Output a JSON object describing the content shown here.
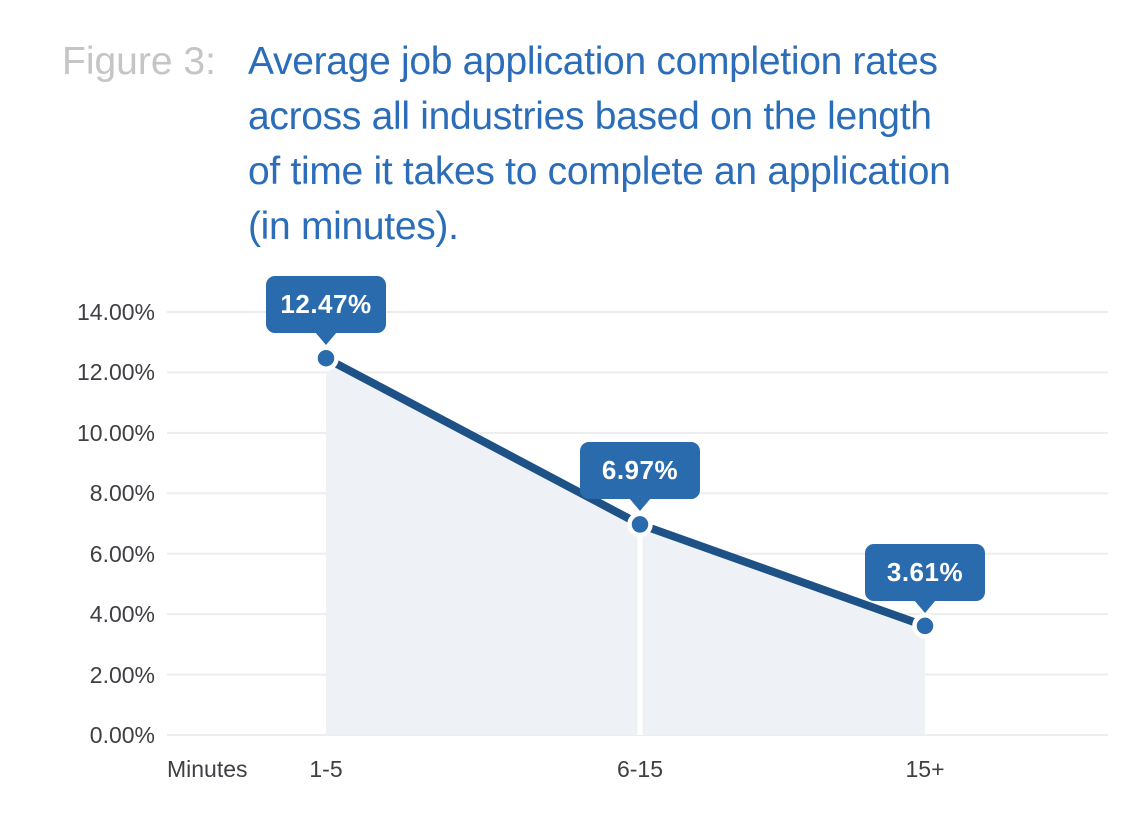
{
  "figure": {
    "label": "Figure 3:",
    "title_lines": [
      "Average job application completion rates",
      "across all industries based on the length",
      "of time it takes to complete an application",
      "(in minutes)."
    ]
  },
  "chart_data": {
    "type": "line",
    "variant": "line-with-area-fill-and-callouts",
    "title": "Average job application completion rates across all industries based on the length of time it takes to complete an application (in minutes).",
    "x_axis_title": "Minutes",
    "categories": [
      "1-5",
      "6-15",
      "15+"
    ],
    "values": [
      12.47,
      6.97,
      3.61
    ],
    "data_labels": [
      "12.47%",
      "6.97%",
      "3.61%"
    ],
    "y_ticks": [
      14,
      12,
      10,
      8,
      6,
      4,
      2,
      0
    ],
    "y_tick_labels": [
      "14.00%",
      "12.00%",
      "10.00%",
      "8.00%",
      "6.00%",
      "4.00%",
      "2.00%",
      "0.00%"
    ],
    "ylim": [
      0,
      14
    ],
    "grid": true,
    "legend": false,
    "colors": {
      "title_text": "#2b6db8",
      "figure_label": "#c5c5c5",
      "line": "#1e5287",
      "marker": "#2a6bad",
      "marker_ring": "#ffffff",
      "callout_bg": "#2a6bad",
      "callout_text": "#ffffff",
      "area_fill": "#edf1f7",
      "gridline": "#ededed",
      "axis_text": "#3f4044",
      "background": "#ffffff"
    }
  }
}
